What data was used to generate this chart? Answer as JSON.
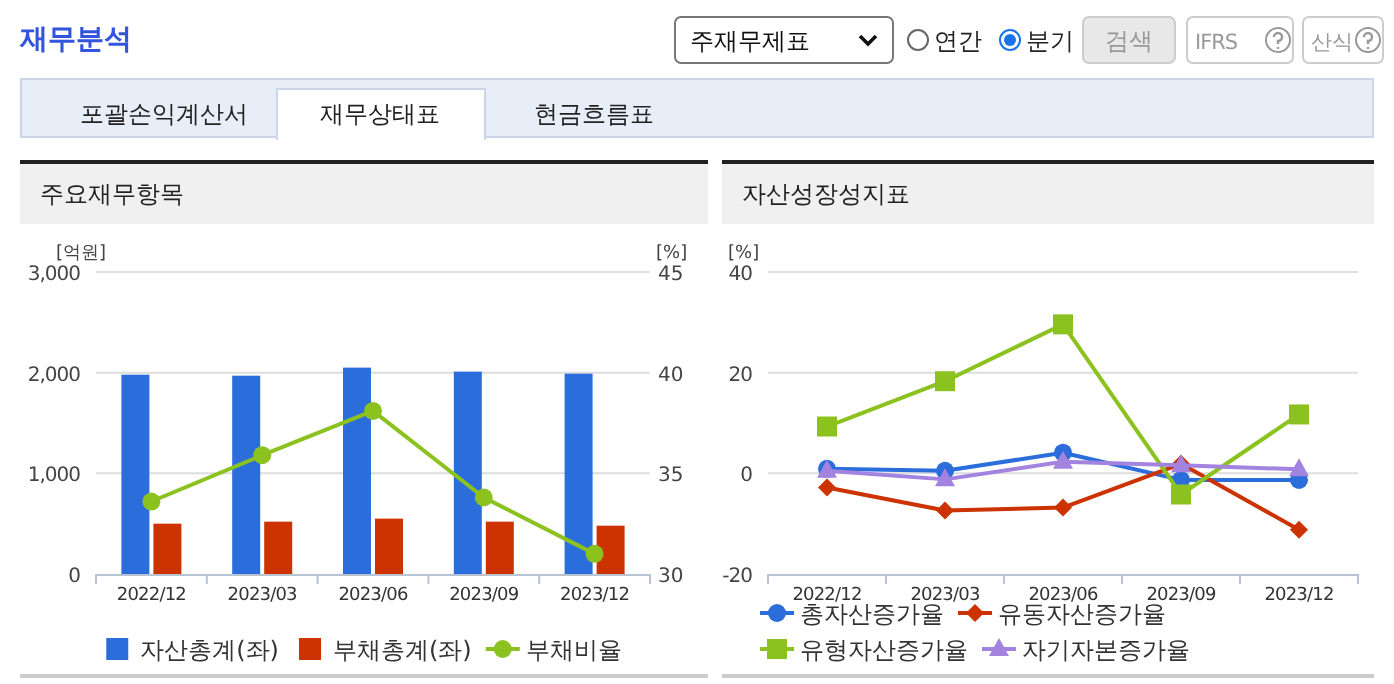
{
  "chart_data": [
    {
      "type": "other",
      "title": "재무분석",
      "annotations": [
        "주재무제표",
        "연간",
        "분기",
        "검색",
        "IFRS",
        "산식",
        "포괄손익계산서",
        "재무상태표",
        "현금흐름표"
      ]
    },
    {
      "type": "bar",
      "title": "주요재무항목",
      "ylabel": "[억원]",
      "y2label": "[%]",
      "categories": [
        "2022/12",
        "2023/03",
        "2023/06",
        "2023/09",
        "2023/12"
      ],
      "series": [
        {
          "name": "자산총계(좌)",
          "color": "#2b6ddb",
          "values": [
            1980,
            1970,
            2050,
            2010,
            1990
          ]
        },
        {
          "name": "부채총계(좌)",
          "color": "#cc3300",
          "values": [
            500,
            520,
            550,
            520,
            480
          ]
        },
        {
          "name": "부채비율",
          "type": "line",
          "axis": "y2",
          "marker": "circle",
          "color": "#8cc21f",
          "values": [
            33.6,
            35.9,
            38.1,
            33.8,
            31.0
          ]
        }
      ],
      "ylim": [
        0,
        3000
      ],
      "yticks": [
        0,
        {
          "value": 1000,
          "label": "1,000"
        },
        {
          "value": 2000,
          "label": "2,000"
        },
        {
          "value": 3000,
          "label": "3,000"
        }
      ],
      "y2lim": [
        30,
        45
      ],
      "y2ticks": [
        30,
        35,
        40,
        45
      ],
      "grid": "y",
      "legend": "bottom"
    },
    {
      "type": "line",
      "title": "자산성장성지표",
      "ylabel": "[%]",
      "categories": [
        "2022/12",
        "2023/03",
        "2023/06",
        "2023/09",
        "2023/12"
      ],
      "series": [
        {
          "name": "총자산증가율",
          "color": "#2b6ddb",
          "marker": "circle",
          "values": [
            0.9,
            0.5,
            4.1,
            -1.3,
            -1.3
          ]
        },
        {
          "name": "유동자산증가율",
          "color": "#cc3300",
          "marker": "diamond",
          "values": [
            -2.8,
            -7.4,
            -6.8,
            1.9,
            -11.2
          ]
        },
        {
          "name": "유형자산증가율",
          "color": "#8cc21f",
          "marker": "square",
          "values": [
            9.3,
            18.3,
            29.6,
            -4.2,
            11.7
          ]
        },
        {
          "name": "자기자본증가율",
          "color": "#a383e0",
          "marker": "triangle",
          "values": [
            0.5,
            -1.2,
            2.3,
            1.6,
            0.8
          ]
        }
      ],
      "ylim": [
        -20,
        40
      ],
      "yticks": [
        -20,
        0,
        20,
        40
      ],
      "grid": "y",
      "legend": "bottom"
    }
  ]
}
